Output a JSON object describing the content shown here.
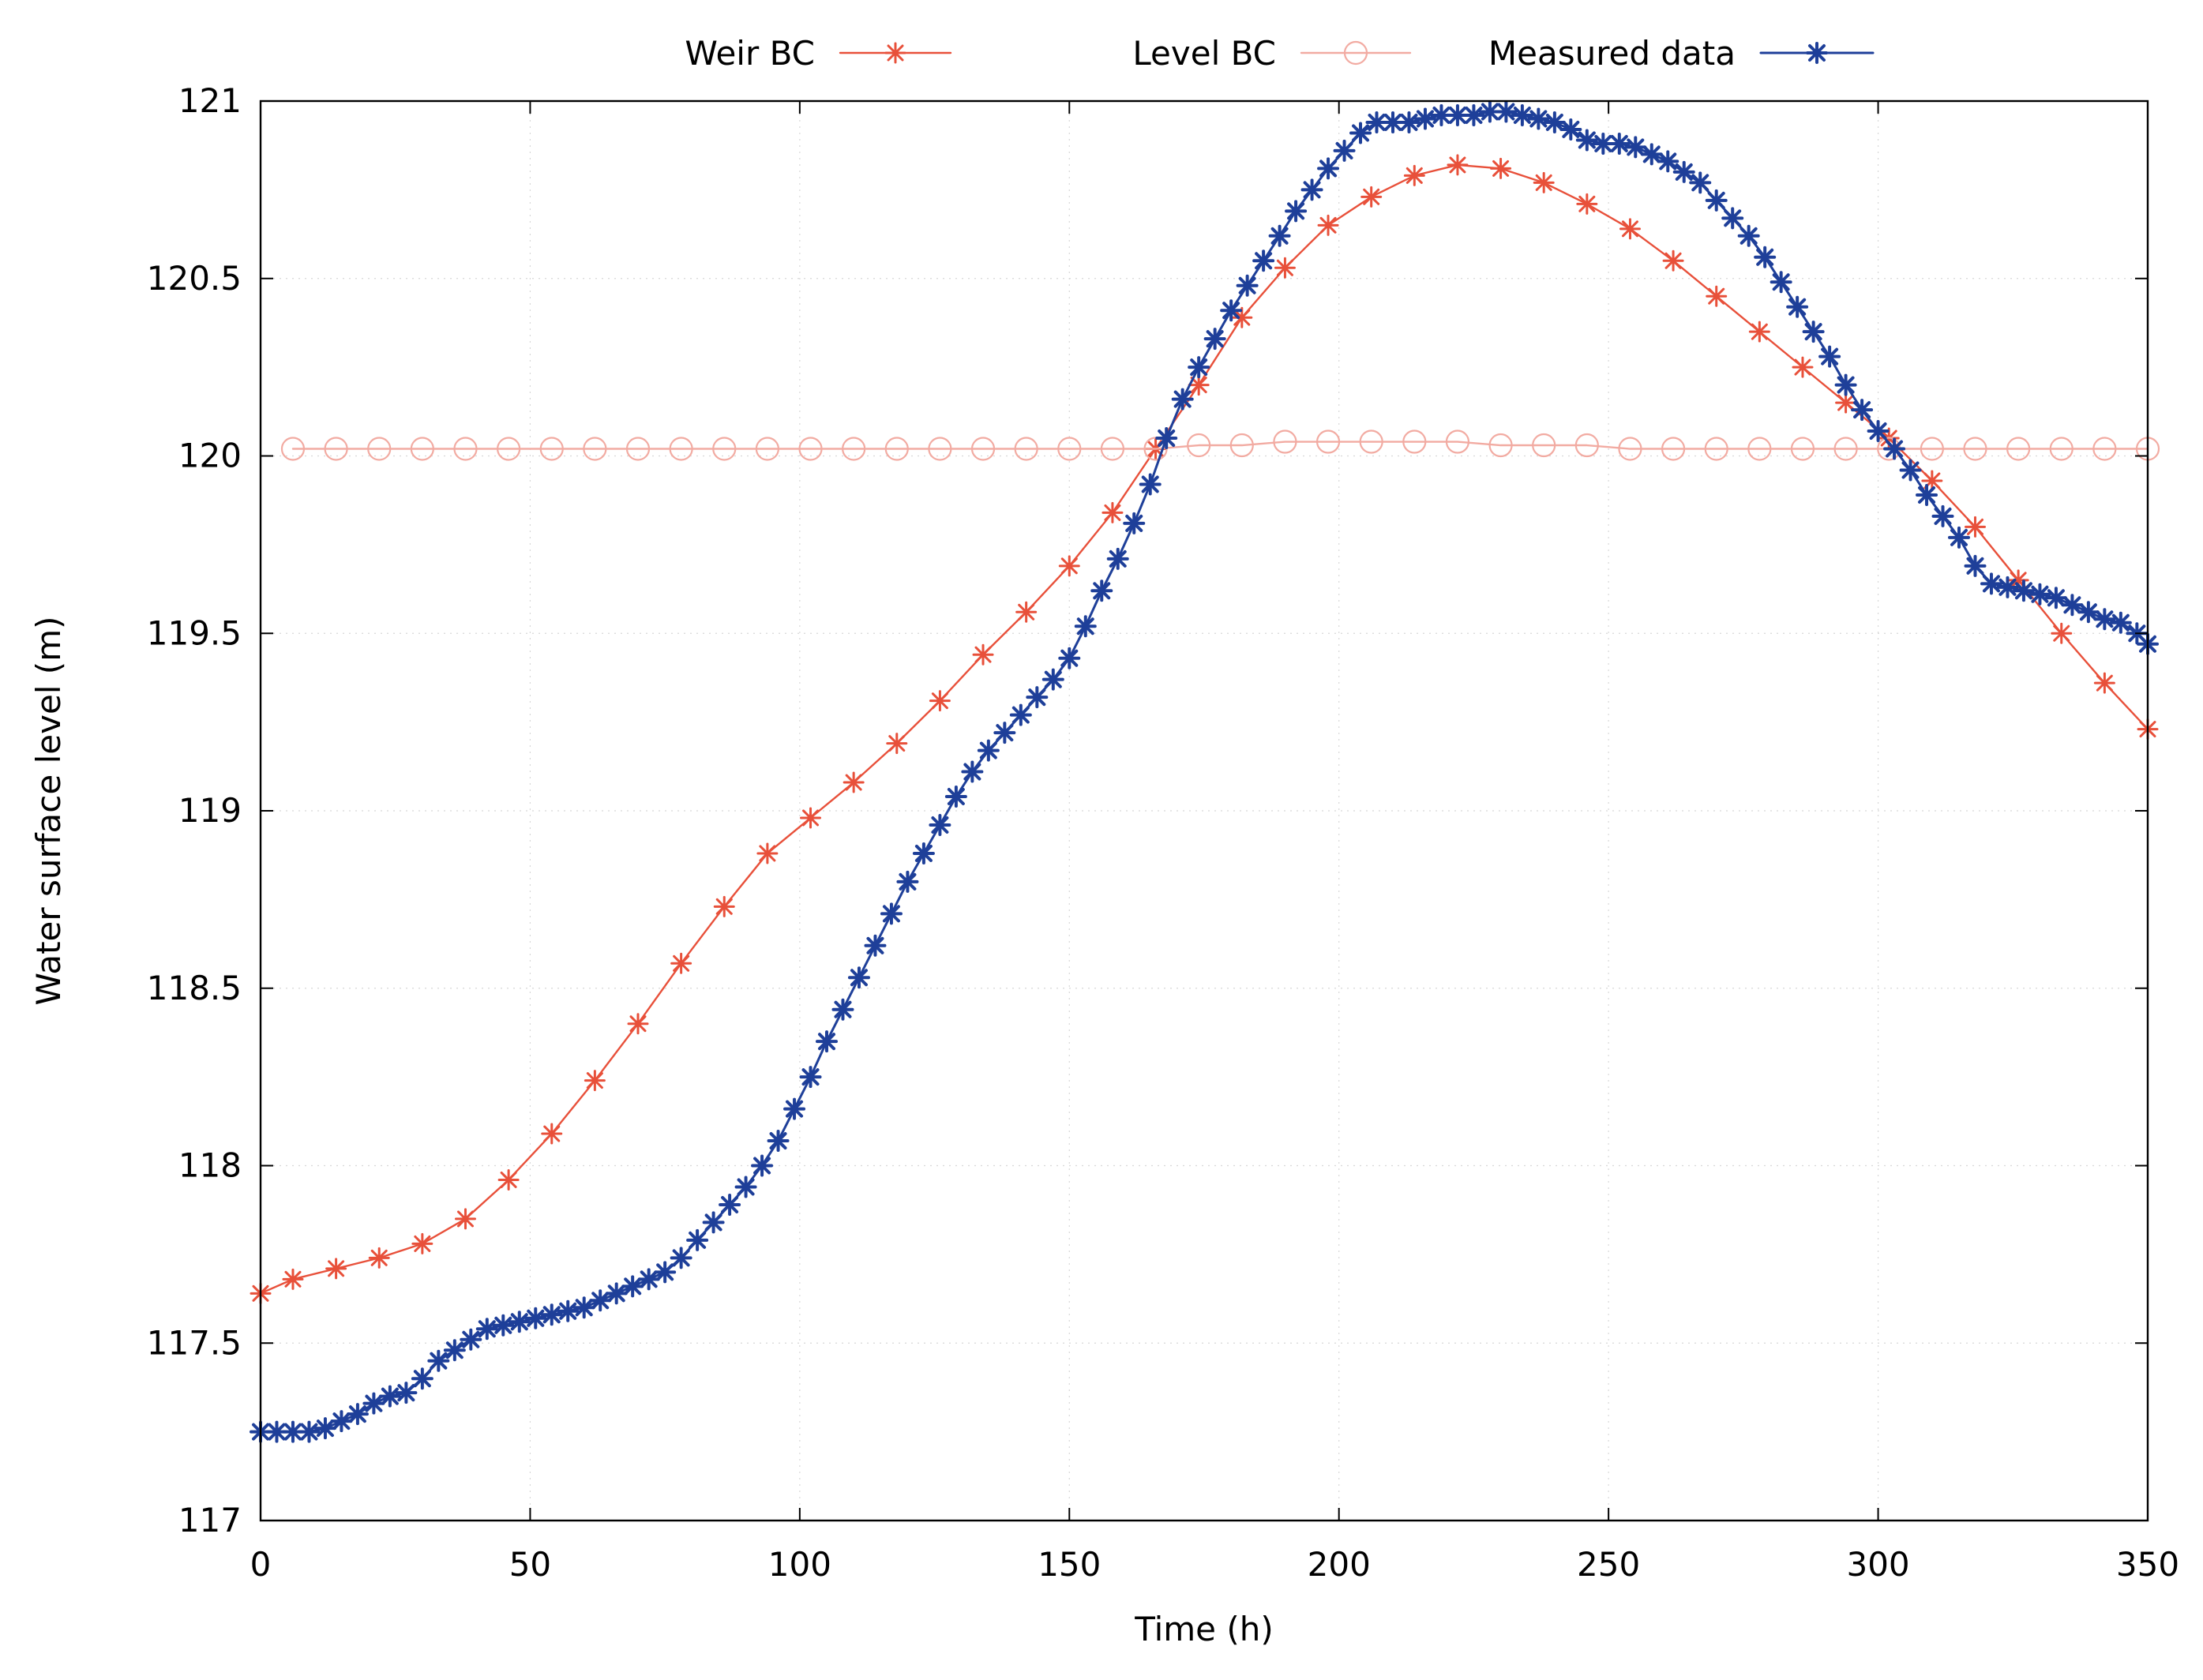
{
  "chart_data": {
    "type": "line",
    "title": "",
    "xlabel": "Time (h)",
    "ylabel": "Water surface level (m)",
    "xlim": [
      0,
      350
    ],
    "ylim": [
      117,
      121
    ],
    "grid": true,
    "legend_position": "top-center",
    "xticks": [
      0,
      50,
      100,
      150,
      200,
      250,
      300,
      350
    ],
    "xtick_labels": [
      "0",
      "50",
      "100",
      "150",
      "200",
      "250",
      "300",
      "350"
    ],
    "yticks": [
      117,
      117.5,
      118,
      118.5,
      119,
      119.5,
      120,
      120.5,
      121
    ],
    "ytick_labels": [
      "117",
      "117.5",
      "118",
      "118.5",
      "119",
      "119.5",
      "120",
      "120.5",
      "121"
    ],
    "series": [
      {
        "name": "Weir BC",
        "color": "#e8503a",
        "marker": "asterisk",
        "line_width": 2.4,
        "marker_size": 12,
        "x": [
          0,
          6,
          14,
          22,
          30,
          38,
          46,
          54,
          62,
          70,
          78,
          86,
          94,
          102,
          110,
          118,
          126,
          134,
          142,
          150,
          158,
          166,
          174,
          182,
          190,
          198,
          206,
          214,
          222,
          230,
          238,
          246,
          254,
          262,
          270,
          278,
          286,
          294,
          302,
          310,
          318,
          326,
          334,
          342,
          350
        ],
        "y": [
          117.64,
          117.68,
          117.71,
          117.74,
          117.78,
          117.85,
          117.96,
          118.09,
          118.24,
          118.4,
          118.57,
          118.73,
          118.88,
          118.98,
          119.08,
          119.19,
          119.31,
          119.44,
          119.56,
          119.69,
          119.84,
          120.02,
          120.2,
          120.39,
          120.53,
          120.65,
          120.73,
          120.79,
          120.82,
          120.81,
          120.77,
          120.71,
          120.64,
          120.55,
          120.45,
          120.35,
          120.25,
          120.15,
          120.05,
          119.93,
          119.8,
          119.65,
          119.5,
          119.36,
          119.23
        ]
      },
      {
        "name": "Level BC",
        "color": "#f2aba2",
        "marker": "circle",
        "line_width": 2.4,
        "marker_size": 14,
        "x": [
          6,
          14,
          22,
          30,
          38,
          46,
          54,
          62,
          70,
          78,
          86,
          94,
          102,
          110,
          118,
          126,
          134,
          142,
          150,
          158,
          166,
          174,
          182,
          190,
          198,
          206,
          214,
          222,
          230,
          238,
          246,
          254,
          262,
          270,
          278,
          286,
          294,
          302,
          310,
          318,
          326,
          334,
          342,
          350
        ],
        "y": [
          120.02,
          120.02,
          120.02,
          120.02,
          120.02,
          120.02,
          120.02,
          120.02,
          120.02,
          120.02,
          120.02,
          120.02,
          120.02,
          120.02,
          120.02,
          120.02,
          120.02,
          120.02,
          120.02,
          120.02,
          120.02,
          120.03,
          120.03,
          120.04,
          120.04,
          120.04,
          120.04,
          120.04,
          120.03,
          120.03,
          120.03,
          120.02,
          120.02,
          120.02,
          120.02,
          120.02,
          120.02,
          120.02,
          120.02,
          120.02,
          120.02,
          120.02,
          120.02,
          120.02
        ]
      },
      {
        "name": "Measured data",
        "color": "#1e3f99",
        "marker": "asterisk",
        "line_width": 3,
        "marker_size": 12,
        "x": [
          0,
          3,
          6,
          9,
          12,
          15,
          18,
          21,
          24,
          27,
          30,
          33,
          36,
          39,
          42,
          45,
          48,
          51,
          54,
          57,
          60,
          63,
          66,
          69,
          72,
          75,
          78,
          81,
          84,
          87,
          90,
          93,
          96,
          99,
          102,
          105,
          108,
          111,
          114,
          117,
          120,
          123,
          126,
          129,
          132,
          135,
          138,
          141,
          144,
          147,
          150,
          153,
          156,
          159,
          162,
          165,
          168,
          171,
          174,
          177,
          180,
          183,
          186,
          189,
          192,
          195,
          198,
          201,
          204,
          207,
          210,
          213,
          216,
          219,
          222,
          225,
          228,
          231,
          234,
          237,
          240,
          243,
          246,
          249,
          252,
          255,
          258,
          261,
          264,
          267,
          270,
          273,
          276,
          279,
          282,
          285,
          288,
          291,
          294,
          297,
          300,
          303,
          306,
          309,
          312,
          315,
          318,
          321,
          324,
          327,
          330,
          333,
          336,
          339,
          342,
          345,
          348,
          350
        ],
        "y": [
          117.25,
          117.25,
          117.25,
          117.25,
          117.26,
          117.28,
          117.3,
          117.33,
          117.35,
          117.36,
          117.4,
          117.45,
          117.48,
          117.51,
          117.54,
          117.55,
          117.56,
          117.57,
          117.58,
          117.59,
          117.6,
          117.62,
          117.64,
          117.66,
          117.68,
          117.7,
          117.74,
          117.79,
          117.84,
          117.89,
          117.94,
          118.0,
          118.07,
          118.16,
          118.25,
          118.35,
          118.44,
          118.53,
          118.62,
          118.71,
          118.8,
          118.88,
          118.96,
          119.04,
          119.11,
          119.17,
          119.22,
          119.27,
          119.32,
          119.37,
          119.43,
          119.52,
          119.62,
          119.71,
          119.81,
          119.92,
          120.05,
          120.16,
          120.25,
          120.33,
          120.41,
          120.48,
          120.55,
          120.62,
          120.69,
          120.75,
          120.81,
          120.86,
          120.91,
          120.94,
          120.94,
          120.94,
          120.95,
          120.96,
          120.96,
          120.96,
          120.97,
          120.97,
          120.96,
          120.95,
          120.94,
          120.92,
          120.89,
          120.88,
          120.88,
          120.87,
          120.85,
          120.83,
          120.8,
          120.77,
          120.72,
          120.67,
          120.62,
          120.56,
          120.49,
          120.42,
          120.35,
          120.28,
          120.2,
          120.13,
          120.07,
          120.02,
          119.96,
          119.89,
          119.83,
          119.77,
          119.69,
          119.64,
          119.63,
          119.62,
          119.61,
          119.6,
          119.58,
          119.56,
          119.54,
          119.53,
          119.5,
          119.47
        ]
      }
    ]
  }
}
